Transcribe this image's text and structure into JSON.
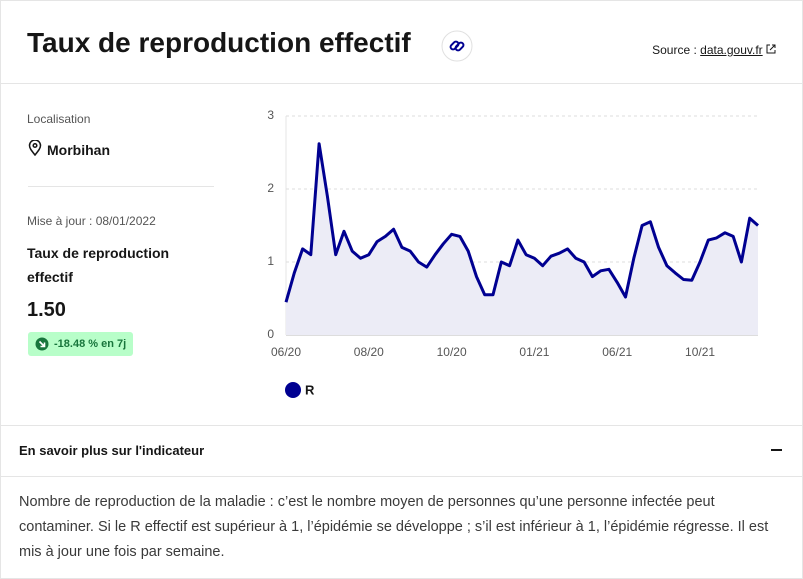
{
  "header": {
    "title": "Taux de reproduction effectif",
    "source_label": "Source :",
    "source_link": "data.gouv.fr"
  },
  "panel": {
    "location_label": "Localisation",
    "location": "Morbihan",
    "updated": "Mise à jour : 08/01/2022",
    "indicator": "Taux de reproduction effectif",
    "value": "1.50",
    "change": "-18.48 % en 7j"
  },
  "chart_data": {
    "type": "line",
    "categories": [
      "06/20",
      null,
      null,
      null,
      null,
      null,
      null,
      null,
      null,
      null,
      "08/20",
      null,
      null,
      null,
      null,
      null,
      null,
      null,
      null,
      null,
      "10/20",
      null,
      null,
      null,
      null,
      null,
      null,
      null,
      null,
      null,
      "01/21",
      null,
      null,
      null,
      null,
      null,
      null,
      null,
      null,
      null,
      "06/21",
      null,
      null,
      null,
      null,
      null,
      null,
      null,
      null,
      null,
      "10/21",
      null,
      null,
      null,
      null,
      null,
      null,
      null
    ],
    "series": [
      {
        "name": "R",
        "color": "#000091",
        "values": [
          0.45,
          0.85,
          1.18,
          1.1,
          2.62,
          1.9,
          1.1,
          1.42,
          1.15,
          1.05,
          1.1,
          1.28,
          1.35,
          1.45,
          1.2,
          1.15,
          1.0,
          0.93,
          1.1,
          1.25,
          1.38,
          1.35,
          1.15,
          0.8,
          0.55,
          0.55,
          1.0,
          0.95,
          1.3,
          1.1,
          1.05,
          0.95,
          1.08,
          1.12,
          1.18,
          1.05,
          1.0,
          0.8,
          0.88,
          0.9,
          0.72,
          0.52,
          1.05,
          1.5,
          1.55,
          1.2,
          0.95,
          0.85,
          0.76,
          0.75,
          1.0,
          1.3,
          1.33,
          1.4,
          1.35,
          1.0,
          1.6,
          1.5
        ]
      }
    ],
    "fill_color": "#ececf6",
    "ylim": [
      0,
      3
    ],
    "yticks": [
      0,
      1,
      2,
      3
    ],
    "grid": true
  },
  "details": {
    "title": "En savoir plus sur l'indicateur",
    "text": "Nombre de reproduction de la maladie : c’est le nombre moyen de personnes qu’une personne infectée peut contaminer. Si le R effectif est supérieur à 1, l’épidémie se développe ; s’il est inférieur à 1, l’épidémie régresse. Il est mis à jour une fois par semaine."
  }
}
